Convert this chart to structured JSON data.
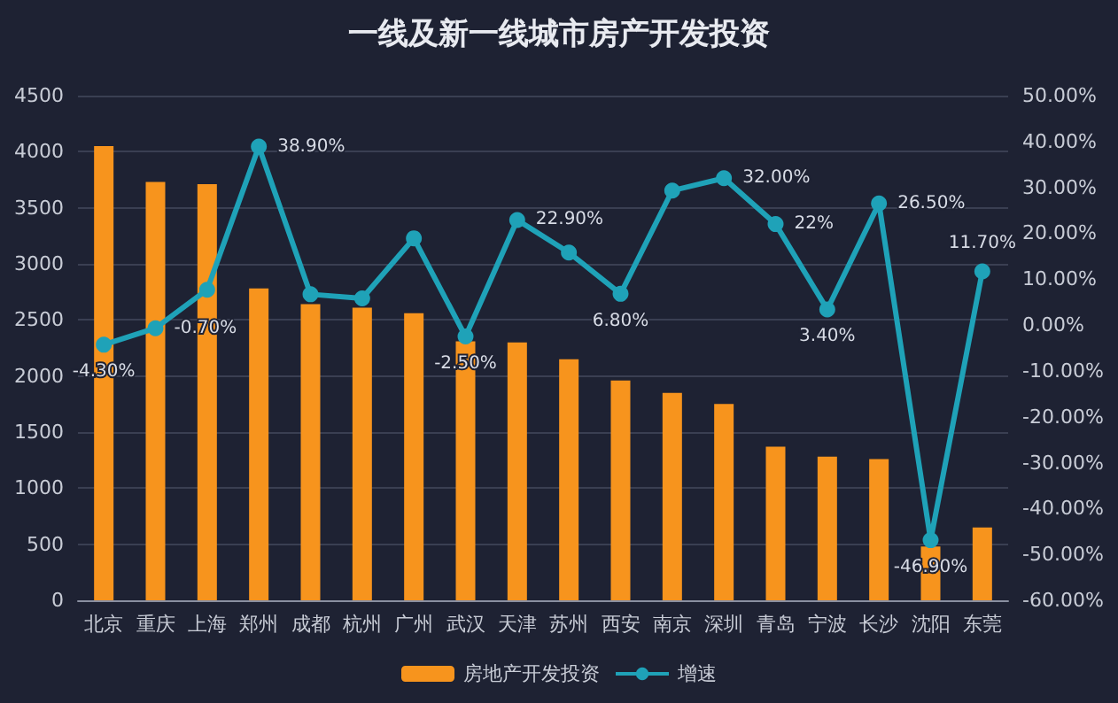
{
  "chart_data": {
    "type": "bar",
    "title": "一线及新一线城市房产开发投资",
    "categories": [
      "北京",
      "重庆",
      "上海",
      "郑州",
      "成都",
      "杭州",
      "广州",
      "武汉",
      "天津",
      "苏州",
      "西安",
      "南京",
      "深圳",
      "青岛",
      "宁波",
      "长沙",
      "沈阳",
      "东莞"
    ],
    "series": [
      {
        "name": "房地产开发投资",
        "color": "#f7941d",
        "values": [
          4050,
          3730,
          3710,
          2780,
          2640,
          2610,
          2560,
          2310,
          2300,
          2150,
          1960,
          1850,
          1750,
          1370,
          1280,
          1260,
          480,
          650
        ]
      },
      {
        "name": "增速",
        "type": "line",
        "axis": "y2",
        "color": "#1fa2b8",
        "values": [
          -4.3,
          -0.7,
          7.7,
          38.9,
          6.7,
          5.8,
          18.9,
          -2.5,
          22.9,
          15.8,
          6.8,
          29.3,
          32,
          22,
          3.4,
          26.5,
          -46.9,
          11.7
        ],
        "value_labels": [
          "-4.30%",
          "-0.70%",
          null,
          "38.90%",
          null,
          null,
          null,
          "-2.50%",
          "22.90%",
          null,
          "6.80%",
          null,
          "32.00%",
          "22%",
          "3.40%",
          "26.50%",
          "-46.90%",
          "11.70%"
        ]
      }
    ],
    "ylim": [
      0,
      4500
    ],
    "yticks": [
      0,
      500,
      1000,
      1500,
      2000,
      2500,
      3000,
      3500,
      4000,
      4500
    ],
    "y2lim": [
      -60,
      50
    ],
    "y2ticks": [
      {
        "value": -60,
        "label": "-60.00%"
      },
      {
        "value": -50,
        "label": "-50.00%"
      },
      {
        "value": -40,
        "label": "-40.00%"
      },
      {
        "value": -30,
        "label": "-30.00%"
      },
      {
        "value": -20,
        "label": "-20.00%"
      },
      {
        "value": -10,
        "label": "-10.00%"
      },
      {
        "value": 0,
        "label": "0.00%"
      },
      {
        "value": 10,
        "label": "10.00%"
      },
      {
        "value": 20,
        "label": "20.00%"
      },
      {
        "value": 30,
        "label": "30.00%"
      },
      {
        "value": 40,
        "label": "40.00%"
      },
      {
        "value": 50,
        "label": "50.00%"
      }
    ],
    "grid": "y",
    "legend": "bottom",
    "marker": "circle"
  }
}
